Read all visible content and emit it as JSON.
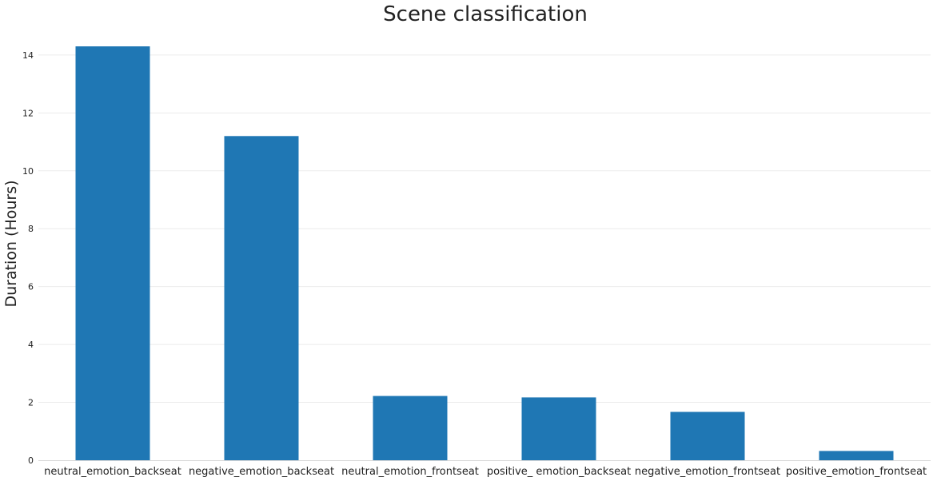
{
  "chart_data": {
    "type": "bar",
    "title": "Scene classification",
    "xlabel": "",
    "ylabel": "Duration (Hours)",
    "categories": [
      "neutral_emotion_backseat",
      "negative_emotion_backseat",
      "neutral_emotion_frontseat",
      "positive_ emotion_backseat",
      "negative_emotion_frontseat",
      "positive_emotion_frontseat"
    ],
    "values": [
      14.3,
      11.2,
      2.22,
      2.17,
      1.67,
      0.32
    ],
    "ylim": [
      0,
      14.3
    ],
    "yticks": [
      0,
      2,
      4,
      6,
      8,
      10,
      12,
      14
    ],
    "ytick_labels": [
      "0",
      "2",
      "4",
      "6",
      "8",
      "10",
      "12",
      "14"
    ],
    "grid": true,
    "bar_color": "#1f77b4"
  }
}
